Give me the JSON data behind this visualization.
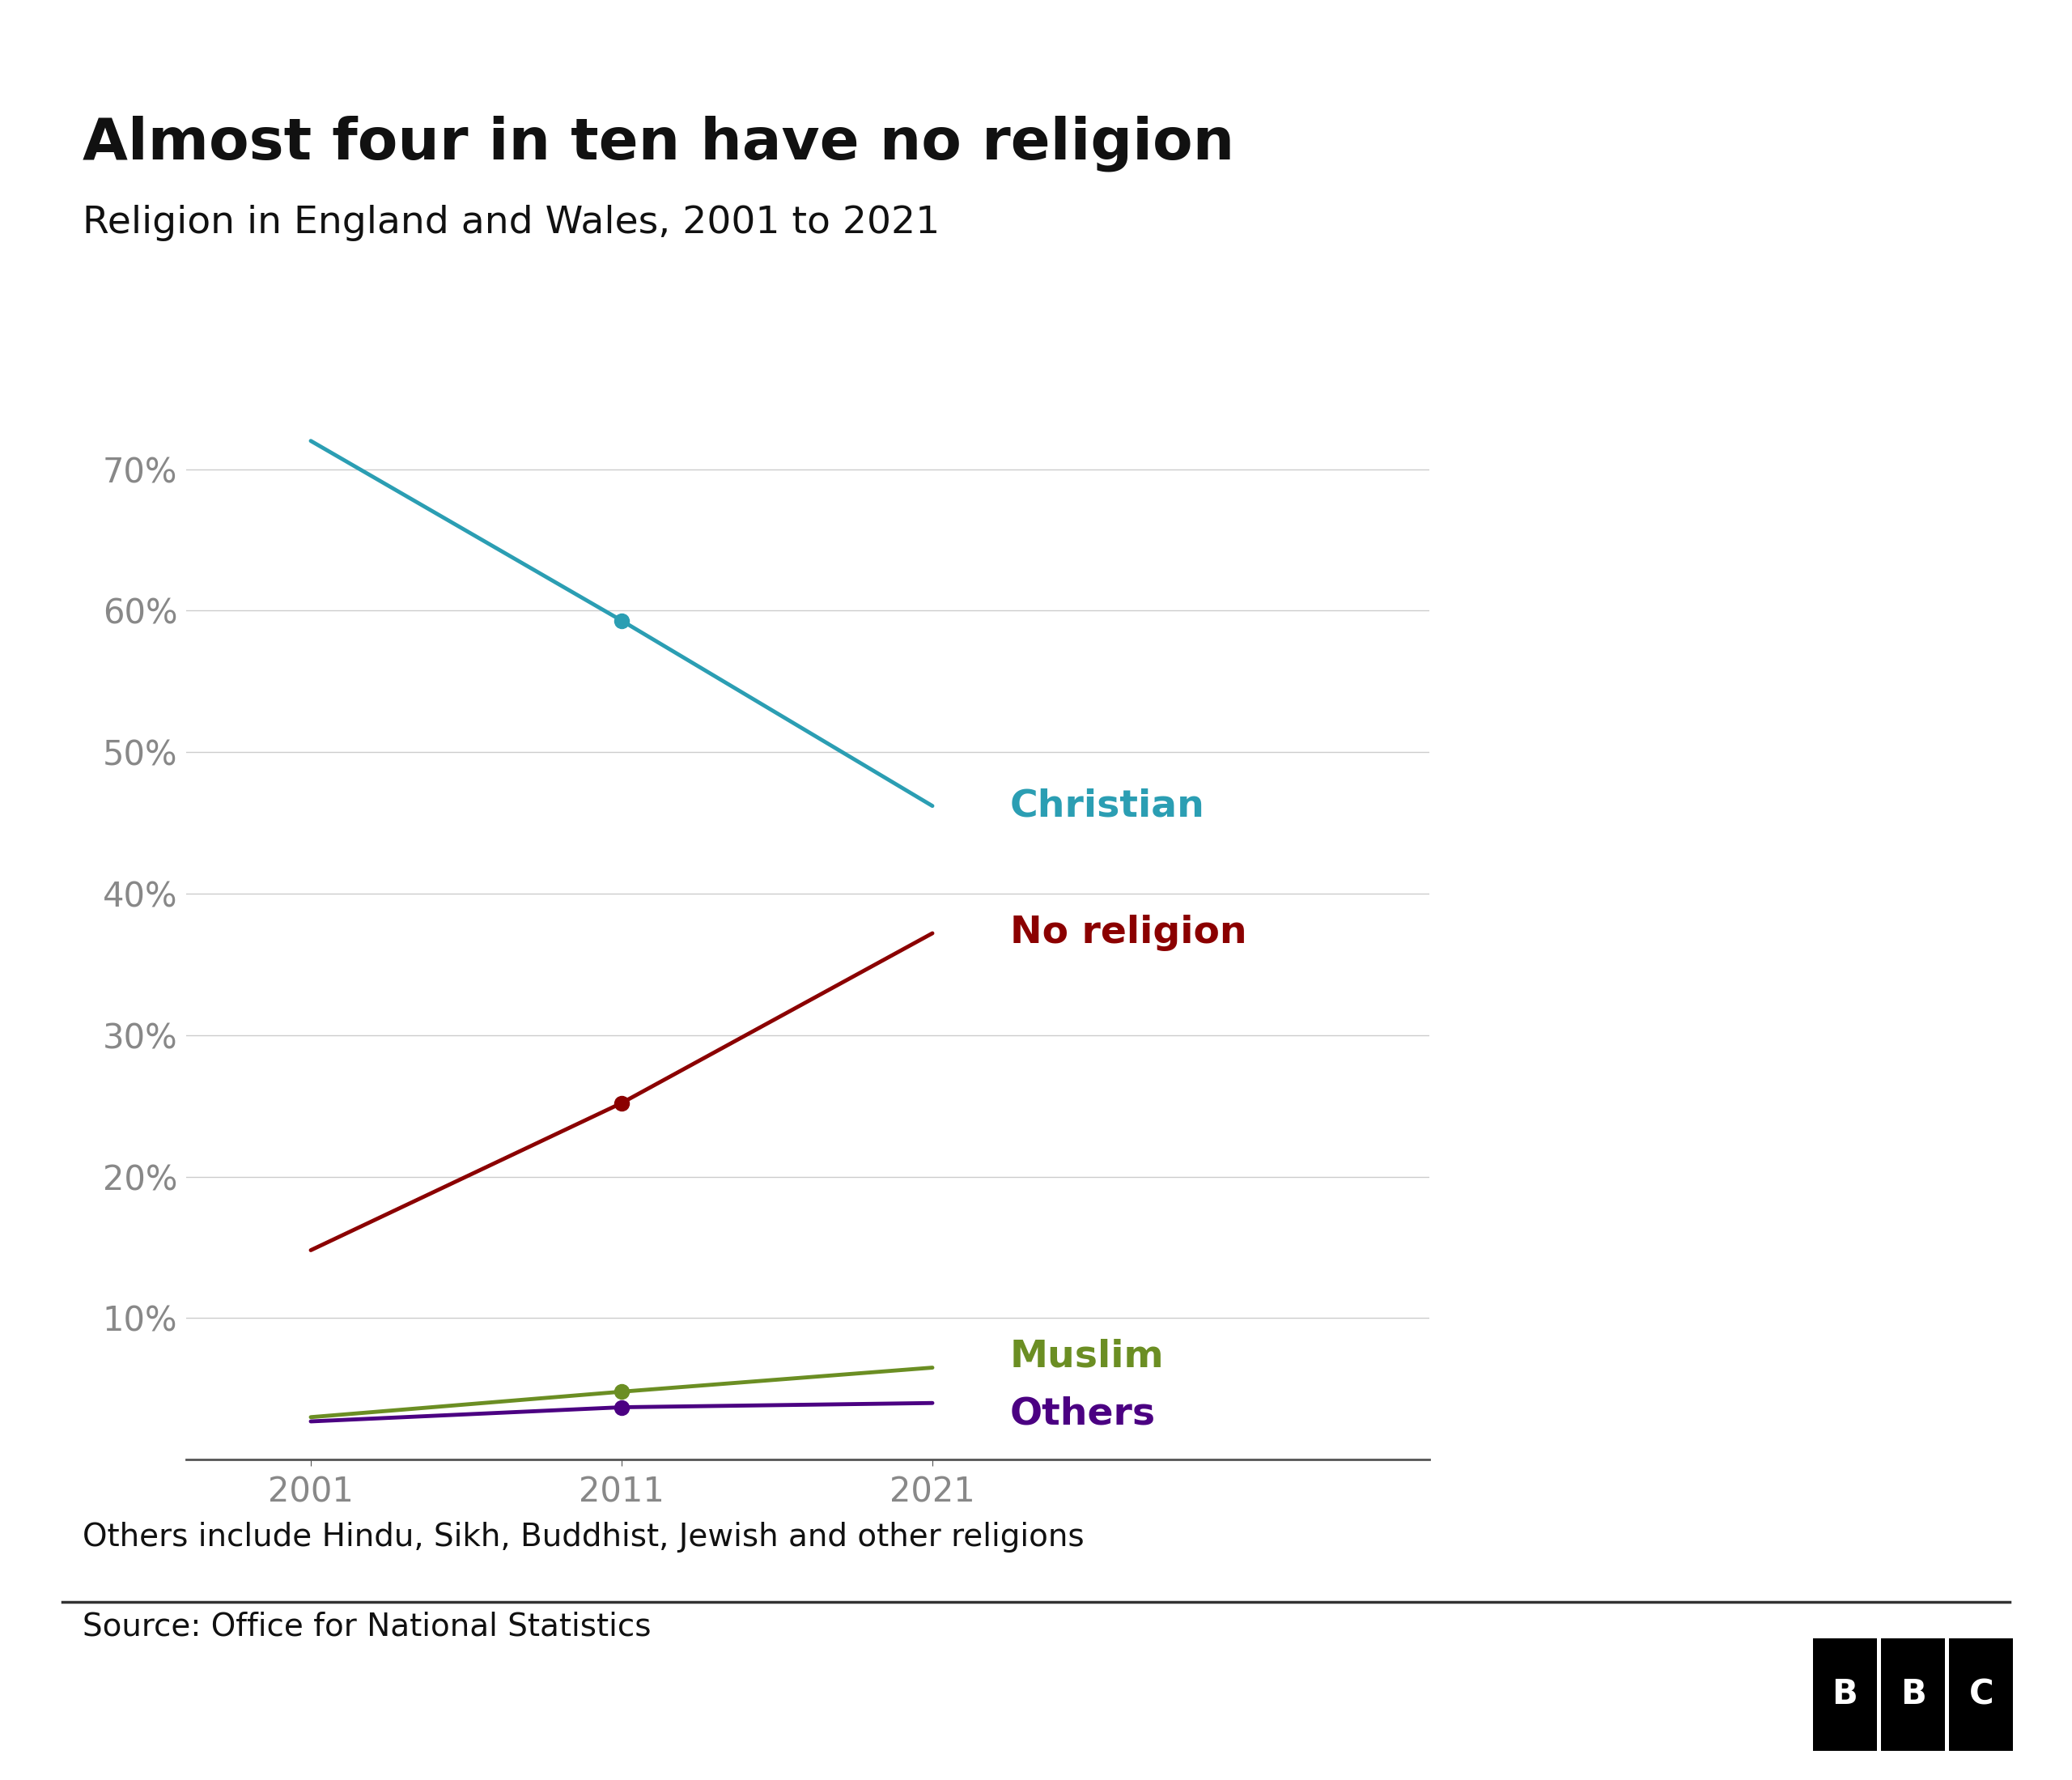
{
  "title": "Almost four in ten have no religion",
  "subtitle": "Religion in England and Wales, 2001 to 2021",
  "footnote": "Others include Hindu, Sikh, Buddhist, Jewish and other religions",
  "source": "Source: Office for National Statistics",
  "years": [
    2001,
    2011,
    2021
  ],
  "series": {
    "Christian": {
      "values": [
        72.0,
        59.3,
        46.2
      ],
      "color": "#2b9eb3",
      "label_color": "#2b9eb3"
    },
    "No religion": {
      "values": [
        14.8,
        25.2,
        37.2
      ],
      "color": "#8b0000",
      "label_color": "#8b0000"
    },
    "Muslim": {
      "values": [
        3.0,
        4.8,
        6.5
      ],
      "color": "#6b8e23",
      "label_color": "#6b8e23"
    },
    "Others": {
      "values": [
        2.7,
        3.7,
        4.0
      ],
      "color": "#4b0082",
      "label_color": "#4b0082"
    }
  },
  "ylim": [
    0,
    78
  ],
  "yticks": [
    0,
    10,
    20,
    30,
    40,
    50,
    60,
    70
  ],
  "background_color": "#ffffff",
  "grid_color": "#cccccc",
  "title_fontsize": 52,
  "subtitle_fontsize": 34,
  "tick_fontsize": 30,
  "label_fontsize": 34,
  "footnote_fontsize": 28,
  "source_fontsize": 28,
  "line_width": 3.5,
  "marker_size": 13
}
